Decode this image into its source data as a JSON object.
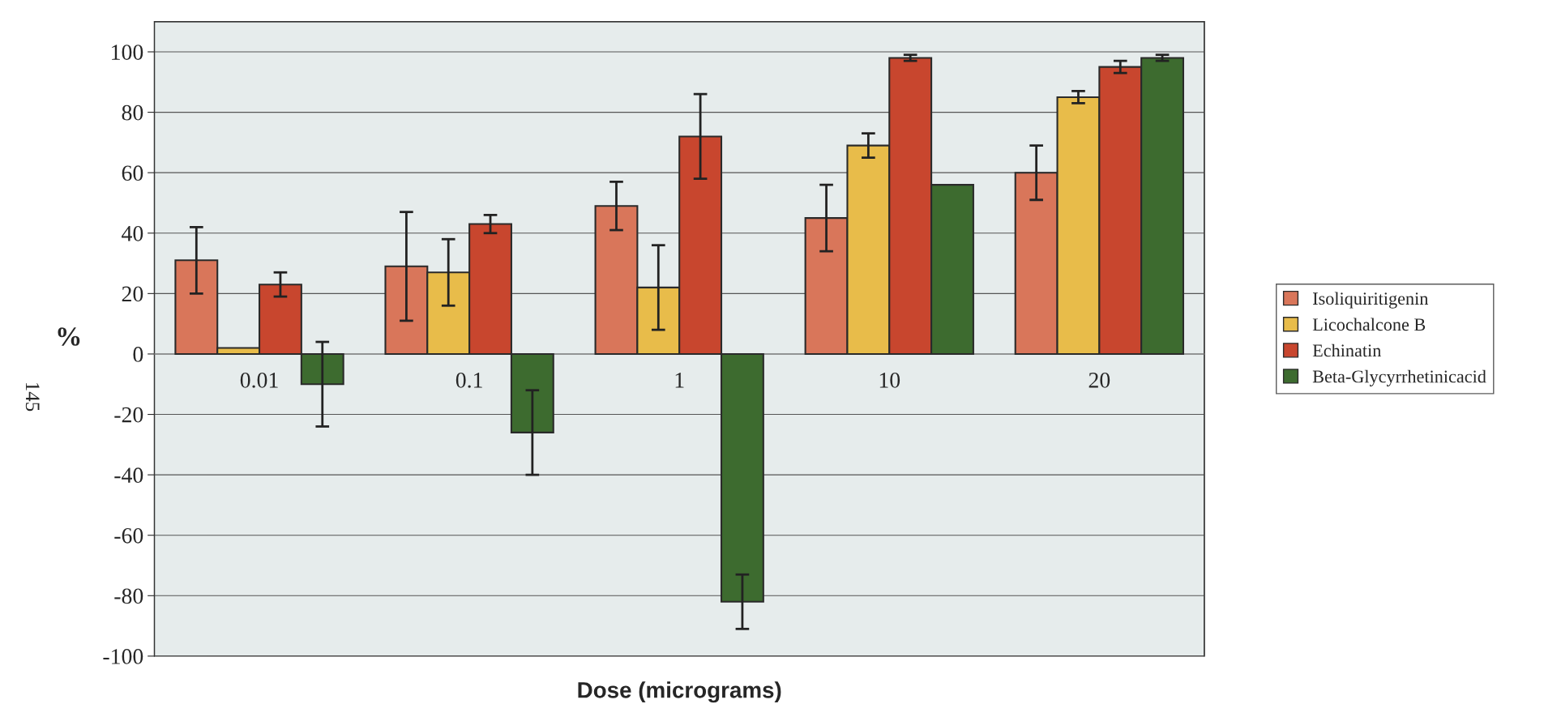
{
  "chart_data": {
    "type": "bar",
    "categories": [
      "0.01",
      "0.1",
      "1",
      "10",
      "20"
    ],
    "xlabel": "Dose (micrograms)",
    "ylabel": "%",
    "ylim": [
      -100,
      110
    ],
    "yticks": [
      -100,
      -80,
      -60,
      -40,
      -20,
      0,
      20,
      40,
      60,
      80,
      100
    ],
    "grid": "y",
    "legend": "right",
    "series": [
      {
        "name": "Isoliquiritigenin",
        "color": "#d9765a",
        "values": [
          31,
          29,
          49,
          45,
          60
        ],
        "errors": [
          11,
          18,
          8,
          11,
          9
        ]
      },
      {
        "name": "Licochalcone B",
        "color": "#e8bc4a",
        "values": [
          2,
          27,
          22,
          69,
          85
        ],
        "errors": [
          null,
          11,
          14,
          4,
          2
        ]
      },
      {
        "name": "Echinatin",
        "color": "#c8462e",
        "values": [
          23,
          43,
          72,
          98,
          95
        ],
        "errors": [
          4,
          3,
          14,
          1,
          2
        ]
      },
      {
        "name": "Beta-Glycyrrhetinicacid",
        "color": "#3d6b2f",
        "values": [
          -10,
          -26,
          -82,
          56,
          98
        ],
        "errors": [
          14,
          14,
          9,
          null,
          1
        ]
      }
    ],
    "annotations": [
      "145"
    ]
  }
}
